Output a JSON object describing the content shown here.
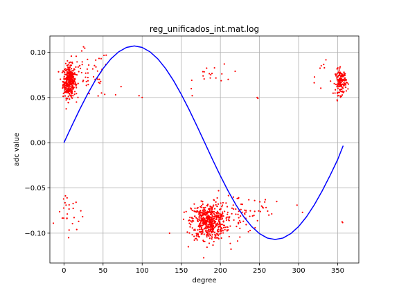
{
  "chart_data": {
    "type": "scatter",
    "title": "reg_unificados_int.mat.log",
    "xlabel": "degree",
    "ylabel": "adc value",
    "xlim": [
      -18,
      377
    ],
    "ylim": [
      -0.133,
      0.118
    ],
    "xticks": [
      0,
      50,
      100,
      150,
      200,
      250,
      300,
      350
    ],
    "xtick_labels": [
      "0",
      "50",
      "100",
      "150",
      "200",
      "250",
      "300",
      "350"
    ],
    "yticks": [
      -0.1,
      -0.05,
      0.0,
      0.05,
      0.1
    ],
    "ytick_labels": [
      "−0.10",
      "−0.05",
      "0.00",
      "0.05",
      "0.10"
    ],
    "grid": true,
    "colors": {
      "fit_line": "#0000ff",
      "points": "#ff0000",
      "grid": "#b0b0b0",
      "frame": "#000000"
    },
    "series": [
      {
        "kind": "line",
        "x": [
          0,
          10,
          20,
          30,
          40,
          50,
          60,
          70,
          80,
          90,
          100,
          110,
          120,
          130,
          140,
          150,
          160,
          170,
          180,
          190,
          200,
          210,
          220,
          230,
          240,
          250,
          260,
          270,
          280,
          290,
          300,
          310,
          320,
          330,
          340,
          350,
          357
        ],
        "y": [
          0.0,
          0.0186,
          0.0366,
          0.0535,
          0.0688,
          0.082,
          0.0927,
          0.1005,
          0.1054,
          0.107,
          0.1054,
          0.1005,
          0.0927,
          0.082,
          0.0688,
          0.0535,
          0.0366,
          0.0186,
          0.0,
          -0.0186,
          -0.0366,
          -0.0535,
          -0.0688,
          -0.082,
          -0.0927,
          -0.1005,
          -0.1054,
          -0.107,
          -0.1054,
          -0.1005,
          -0.0927,
          -0.082,
          -0.0688,
          -0.0535,
          -0.0366,
          -0.0186,
          -0.0033
        ]
      },
      {
        "kind": "scatter",
        "clusters": [
          {
            "cx": 7,
            "cy": 0.068,
            "sx": 4,
            "sy": 0.009,
            "n": 360
          },
          {
            "cx": 30,
            "cy": 0.075,
            "sx": 15,
            "sy": 0.014,
            "n": 55
          },
          {
            "cx": 5,
            "cy": -0.08,
            "sx": 7,
            "sy": 0.01,
            "n": 20
          },
          {
            "cx": 20,
            "cy": -0.09,
            "sx": 5,
            "sy": 0.006,
            "n": 4
          },
          {
            "cx": 190,
            "cy": 0.075,
            "sx": 12,
            "sy": 0.006,
            "n": 16
          },
          {
            "cx": 185,
            "cy": -0.087,
            "sx": 11,
            "sy": 0.01,
            "n": 520
          },
          {
            "cx": 220,
            "cy": -0.08,
            "sx": 14,
            "sy": 0.012,
            "n": 60
          },
          {
            "cx": 258,
            "cy": -0.075,
            "sx": 12,
            "sy": 0.008,
            "n": 14
          },
          {
            "cx": 354,
            "cy": 0.067,
            "sx": 3.5,
            "sy": 0.007,
            "n": 150
          },
          {
            "cx": 335,
            "cy": 0.075,
            "sx": 10,
            "sy": 0.012,
            "n": 10
          },
          {
            "cx": 355,
            "cy": -0.089,
            "sx": 3,
            "sy": 0.002,
            "n": 2
          }
        ],
        "points": [
          [
            25,
            0.106
          ],
          [
            73,
            0.062
          ],
          [
            100,
            0.05
          ],
          [
            135,
            -0.1
          ],
          [
            164,
            0.052
          ],
          [
            247,
            0.05
          ],
          [
            248,
            0.049
          ],
          [
            305,
            -0.077
          ],
          [
            298,
            -0.069
          ],
          [
            272,
            -0.065
          ],
          [
            159,
            -0.115
          ],
          [
            96,
            0.052
          ],
          [
            66,
            0.053
          ],
          [
            48,
            0.055
          ],
          [
            6,
            -0.105
          ],
          [
            4,
            -0.061
          ],
          [
            205,
            0.087
          ],
          [
            210,
            0.07
          ],
          [
            238,
            -0.097
          ],
          [
            262,
            -0.08
          ]
        ]
      }
    ]
  }
}
